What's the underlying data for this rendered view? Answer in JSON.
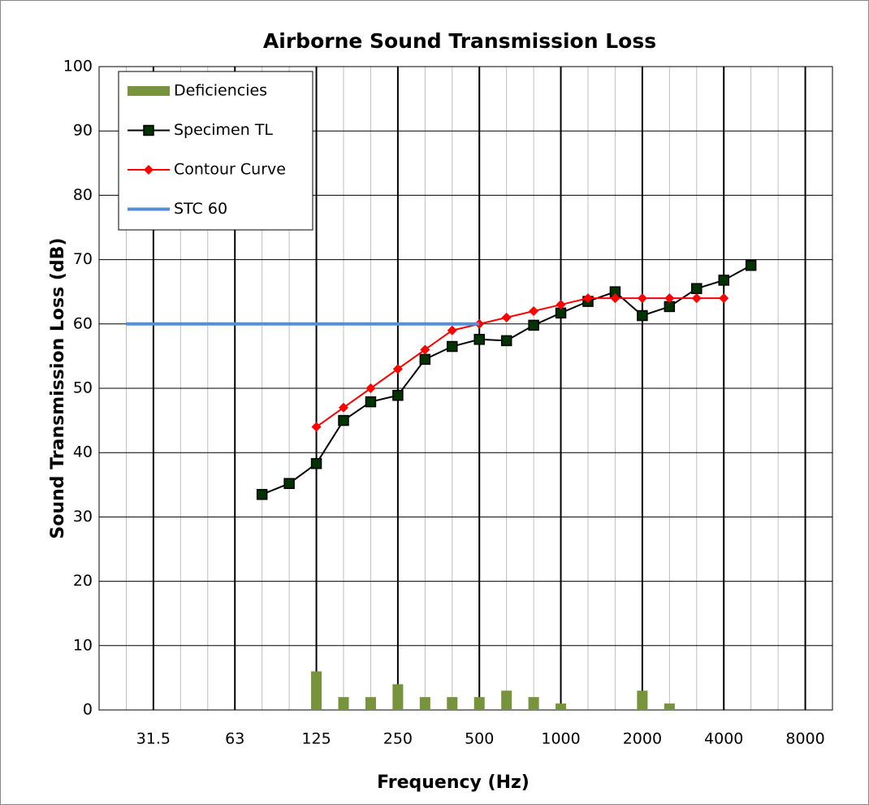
{
  "chart_data": {
    "type": "line",
    "title": "Airborne Sound Transmission Loss",
    "x_label": "Frequency (Hz)",
    "y_label": "Sound Transmission Loss (dB)",
    "categories": [
      null,
      null,
      "31.5",
      null,
      null,
      "63",
      null,
      null,
      "125",
      null,
      null,
      "250",
      null,
      null,
      "500",
      null,
      null,
      "1000",
      null,
      null,
      "2000",
      null,
      null,
      "4000",
      null,
      null,
      "8000",
      null
    ],
    "ylim": [
      0,
      100
    ],
    "yticks": [
      0,
      10,
      20,
      30,
      40,
      50,
      60,
      70,
      80,
      90,
      100
    ],
    "grid": true,
    "legend": "top-left",
    "series": [
      {
        "name": "Deficiencies",
        "kind": "bar",
        "color": "#77933c",
        "values": [
          null,
          null,
          null,
          null,
          null,
          null,
          null,
          null,
          6,
          2,
          2,
          4,
          2,
          2,
          2,
          3,
          2,
          1,
          null,
          null,
          3,
          1,
          null,
          null,
          null,
          null,
          null,
          null
        ]
      },
      {
        "name": "Specimen TL",
        "kind": "line-square",
        "color": "#000000",
        "marker_color": "#003300",
        "values": [
          null,
          null,
          null,
          null,
          null,
          null,
          33.5,
          35.2,
          38.3,
          45,
          47.9,
          48.9,
          54.5,
          56.5,
          57.6,
          57.4,
          59.8,
          61.7,
          63.5,
          65,
          61.3,
          62.7,
          65.5,
          66.8,
          69.1,
          null,
          null,
          null
        ]
      },
      {
        "name": "Contour Curve",
        "kind": "line-diamond",
        "color": "#ff0000",
        "values": [
          null,
          null,
          null,
          null,
          null,
          null,
          null,
          null,
          44,
          47,
          50,
          53,
          56,
          59,
          60,
          61,
          62,
          63,
          64,
          64,
          64,
          64,
          64,
          64,
          null,
          null,
          null,
          null
        ]
      },
      {
        "name": "STC 60",
        "kind": "line",
        "color": "#558ed5",
        "values": [
          null,
          60,
          60,
          60,
          60,
          60,
          60,
          60,
          60,
          60,
          60,
          60,
          60,
          60,
          60,
          null,
          null,
          null,
          null,
          null,
          null,
          null,
          null,
          null,
          null,
          null,
          null,
          null
        ]
      }
    ]
  }
}
